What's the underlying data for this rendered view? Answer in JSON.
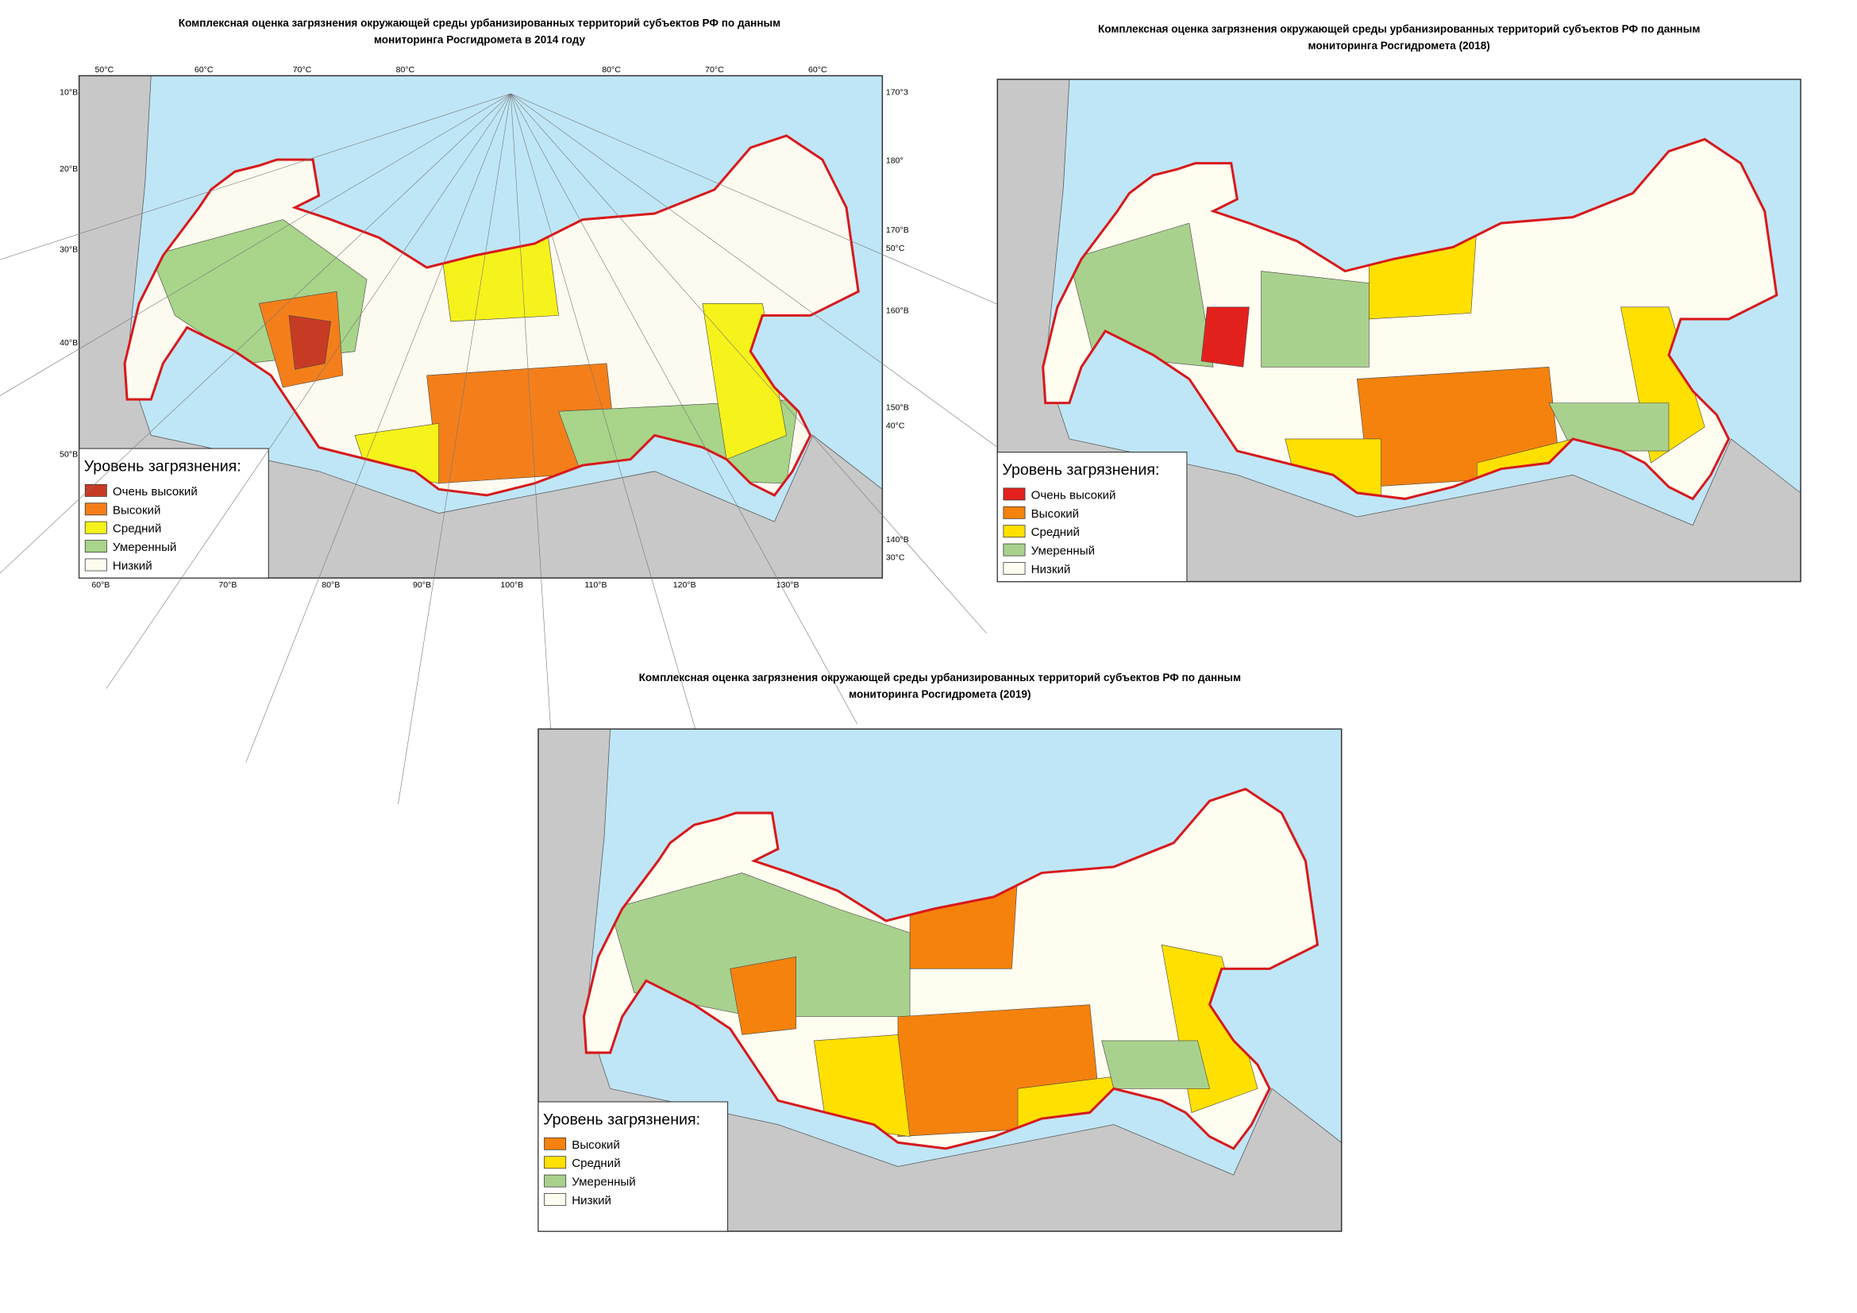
{
  "maps": [
    {
      "title": [
        "Комплексная оценка загрязнения окружающей среды урбанизированных территорий субъектов РФ по данным",
        "мониторинга Росгидромета в 2014 году"
      ],
      "legend": {
        "title": "Уровень загрязнения:",
        "items": [
          {
            "label": "Очень высокий",
            "color": "#c73b24"
          },
          {
            "label": "Высокий",
            "color": "#f47f1a"
          },
          {
            "label": "Средний",
            "color": "#f6f21b"
          },
          {
            "label": "Умеренный",
            "color": "#a8d58a"
          },
          {
            "label": "Низкий",
            "color": "#fdfbf0"
          }
        ]
      },
      "graticule": {
        "top": [
          "50°С",
          "60°С",
          "70°С",
          "80°С",
          "80°С",
          "70°С",
          "60°С"
        ],
        "left": [
          "10°В",
          "20°В",
          "30°В",
          "40°В",
          "50°В"
        ],
        "right": [
          "170°З",
          "180°",
          "170°В",
          "50°С",
          "160°В",
          "150°В",
          "40°С",
          "140°В",
          "30°С"
        ],
        "bottom": [
          "60°В",
          "70°В",
          "80°В",
          "90°В",
          "100°В",
          "110°В",
          "120°В",
          "130°В"
        ]
      }
    },
    {
      "title": [
        "Комплексная оценка загрязнения окружающей среды урбанизированных территорий субъектов РФ по данным",
        "мониторинга Росгидромета (2018)"
      ],
      "legend": {
        "title": "Уровень загрязнения:",
        "items": [
          {
            "label": "Очень высокий",
            "color": "#e3211c"
          },
          {
            "label": "Высокий",
            "color": "#f5820d"
          },
          {
            "label": "Средний",
            "color": "#ffe000"
          },
          {
            "label": "Умеренный",
            "color": "#a9d18e"
          },
          {
            "label": "Низкий",
            "color": "#fffdf0"
          }
        ]
      }
    },
    {
      "title": [
        "Комплексная оценка загрязнения окружающей среды урбанизированных территорий субъектов РФ по данным",
        "мониторинга Росгидромета (2019)"
      ],
      "legend": {
        "title": "Уровень загрязнения:",
        "items": [
          {
            "label": "Высокий",
            "color": "#f5820d"
          },
          {
            "label": "Средний",
            "color": "#ffe000"
          },
          {
            "label": "Умеренный",
            "color": "#a9d18e"
          },
          {
            "label": "Низкий",
            "color": "#fffdf0"
          }
        ]
      }
    }
  ]
}
